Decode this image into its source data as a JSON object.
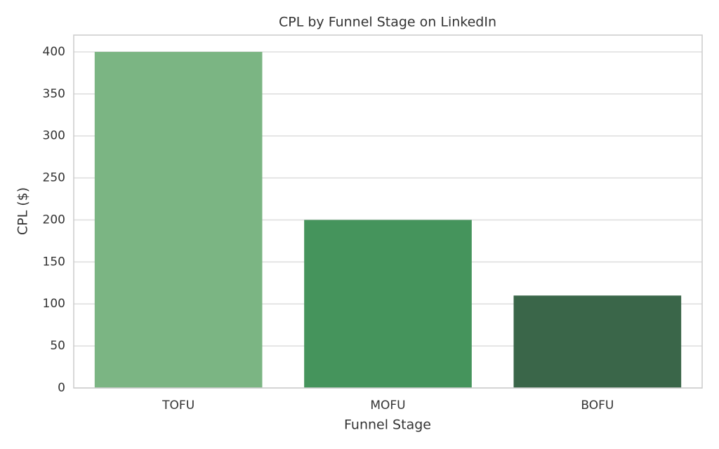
{
  "chart_data": {
    "type": "bar",
    "title": "CPL by Funnel Stage on LinkedIn",
    "x_label": "Funnel Stage",
    "y_label": "CPL ($)",
    "categories": [
      "TOFU",
      "MOFU",
      "BOFU"
    ],
    "values": [
      400,
      200,
      110
    ],
    "colors": [
      "#7bb583",
      "#45945c",
      "#3a6649"
    ],
    "ylim": [
      0,
      420
    ],
    "yticks": [
      0,
      50,
      100,
      150,
      200,
      250,
      300,
      350,
      400
    ],
    "grid": true
  }
}
